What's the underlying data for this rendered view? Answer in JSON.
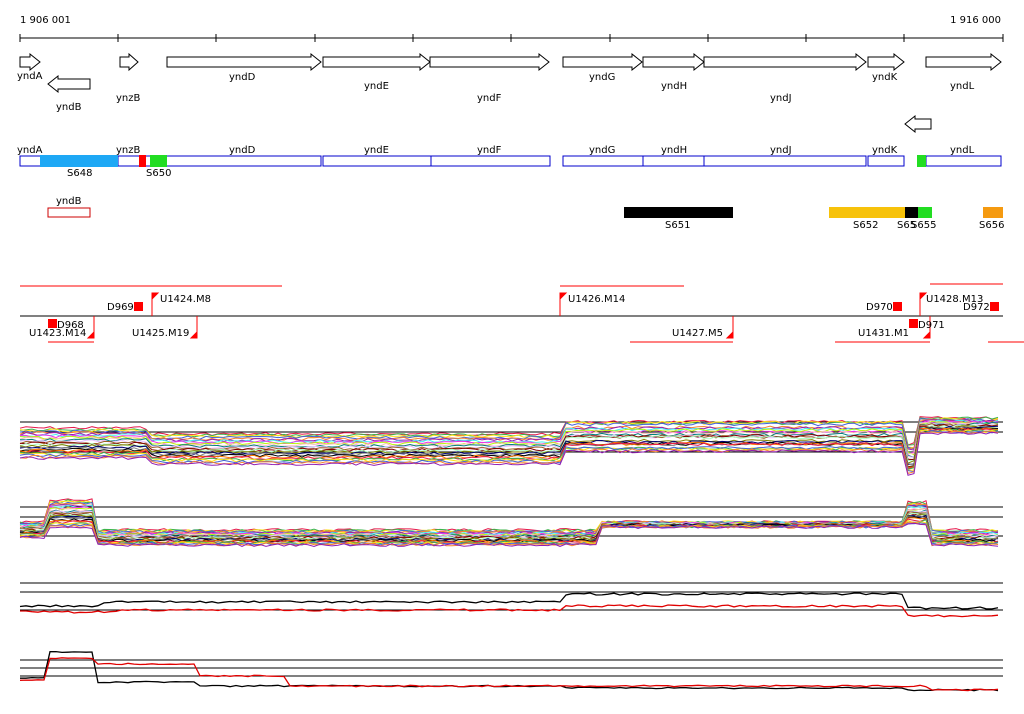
{
  "coordinates": {
    "start_label": "1 906 001",
    "end_label": "1 916 000"
  },
  "genes_forward": [
    {
      "name": "yndA"
    },
    {
      "name": "ynzB"
    },
    {
      "name": "yndD"
    },
    {
      "name": "yndE"
    },
    {
      "name": "yndF"
    },
    {
      "name": "yndG"
    },
    {
      "name": "yndH"
    },
    {
      "name": "yndJ"
    },
    {
      "name": "yndK"
    },
    {
      "name": "yndL"
    }
  ],
  "genes_reverse": [
    {
      "name": "yndB"
    },
    {
      "name": "(unnamed)"
    }
  ],
  "boxes_forward": [
    {
      "name": "yndA"
    },
    {
      "name": "ynzB"
    },
    {
      "name": "yndD"
    },
    {
      "name": "yndE"
    },
    {
      "name": "yndF"
    },
    {
      "name": "yndG"
    },
    {
      "name": "yndH"
    },
    {
      "name": "yndJ"
    },
    {
      "name": "yndK"
    },
    {
      "name": "yndL"
    }
  ],
  "box_reverse": {
    "name": "yndB"
  },
  "segments": [
    {
      "name": "S648",
      "color": "#1ea8f5"
    },
    {
      "name": "S650",
      "color": "#22dd22"
    },
    {
      "name": "S651",
      "color": "#000000"
    },
    {
      "name": "S652",
      "color": "#f7c20a"
    },
    {
      "name": "S65",
      "color": "#000000"
    },
    {
      "name": "S655",
      "color": "#22dd22"
    },
    {
      "name": "S656",
      "color": "#f59a10"
    }
  ],
  "promoters_top": [
    {
      "name": "U1424.M8"
    },
    {
      "name": "U1426.M14"
    },
    {
      "name": "U1428.M13"
    }
  ],
  "promoters_bottom": [
    {
      "name": "U1423.M14"
    },
    {
      "name": "U1425.M19"
    },
    {
      "name": "U1427.M5"
    },
    {
      "name": "U1431.M1"
    }
  ],
  "terminators": [
    {
      "name": "D969"
    },
    {
      "name": "D968"
    },
    {
      "name": "D970"
    },
    {
      "name": "D971"
    },
    {
      "name": "D972"
    }
  ],
  "colors": {
    "gene_outline": "#000000",
    "box_outline": "#0000cc",
    "reverse_box_outline": "#cc0000",
    "promoter": "#ff0000",
    "condition_line_a": "#000000",
    "condition_line_b": "#e00000"
  }
}
